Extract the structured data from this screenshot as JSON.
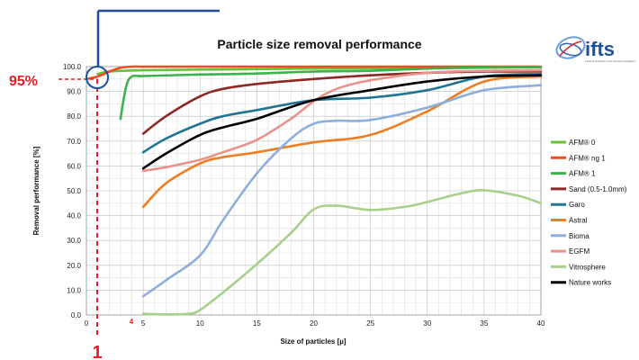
{
  "logo": {
    "text": "ifts",
    "subtitle": "Institut de la Filtration et des Techniques Séparatives"
  },
  "chart_data": {
    "type": "line",
    "title": "Particle size removal performance",
    "xlabel": "Size of particles [µ]",
    "ylabel": "Removal performance [%]",
    "xlim": [
      0,
      40
    ],
    "ylim": [
      0,
      100
    ],
    "x_ticks": [
      0,
      5,
      10,
      15,
      20,
      25,
      30,
      35,
      40
    ],
    "y_ticks": [
      0,
      10,
      20,
      30,
      40,
      50,
      60,
      70,
      80,
      90,
      100
    ],
    "y_tick_labels": [
      "0.0",
      "10.0",
      "20.0",
      "30.0",
      "40.0",
      "50.0",
      "60.0",
      "70.0",
      "80.0",
      "90.0",
      "100.0"
    ],
    "grid": true,
    "legend_position": "right",
    "series": [
      {
        "name": "AFM® 0",
        "color": "#6cbf3a",
        "x": [
          1,
          2,
          5,
          10,
          15,
          20,
          25,
          30,
          35,
          40
        ],
        "y": [
          97,
          98,
          98.5,
          98.8,
          99,
          99.2,
          99.3,
          99.5,
          99.6,
          99.7
        ]
      },
      {
        "name": "AFM® ng 1",
        "color": "#f04b23",
        "x": [
          0,
          1,
          2,
          3,
          4,
          5,
          10,
          15,
          20,
          25,
          30,
          35,
          40
        ],
        "y": [
          95,
          96,
          98,
          99.5,
          100,
          100,
          100,
          100,
          100,
          100,
          100,
          100,
          100
        ]
      },
      {
        "name": "AFM® 1",
        "color": "#3bb34a",
        "x": [
          3,
          3.5,
          4,
          5,
          10,
          15,
          20,
          25,
          30,
          35,
          40
        ],
        "y": [
          79,
          92,
          96,
          96.2,
          96.8,
          97.2,
          98,
          98.3,
          99.2,
          99.6,
          99.8
        ]
      },
      {
        "name": "Sand (0.5-1.0mm)",
        "color": "#8b2a25",
        "x": [
          5,
          7,
          10,
          12,
          15,
          20,
          25,
          30,
          35,
          40
        ],
        "y": [
          73,
          80,
          88,
          91,
          93,
          95,
          96.5,
          97.5,
          98,
          98
        ]
      },
      {
        "name": "Garo",
        "color": "#1f7592",
        "x": [
          5,
          7,
          10,
          12,
          15,
          20,
          25,
          30,
          35,
          40
        ],
        "y": [
          65.5,
          71,
          77,
          80,
          82.5,
          86.5,
          87.5,
          90.5,
          96,
          97
        ]
      },
      {
        "name": "Astral",
        "color": "#ef7d22",
        "x": [
          5,
          7,
          10,
          12,
          15,
          20,
          25,
          30,
          35,
          40
        ],
        "y": [
          43.5,
          53,
          61,
          63.5,
          65.5,
          69.5,
          72.5,
          82,
          94,
          96
        ]
      },
      {
        "name": "Bioma",
        "color": "#8eaedb",
        "x": [
          5,
          7,
          10,
          12,
          15,
          18,
          20,
          22,
          25,
          30,
          35,
          40
        ],
        "y": [
          7.5,
          14,
          24,
          38,
          57,
          71,
          77,
          78.2,
          78.5,
          83.5,
          90.5,
          92.5
        ]
      },
      {
        "name": "EGFM",
        "color": "#e8928c",
        "x": [
          5,
          7,
          10,
          12,
          15,
          18,
          20,
          22,
          25,
          30,
          35,
          40
        ],
        "y": [
          58,
          59.5,
          62.5,
          65.5,
          70.5,
          79,
          86,
          91,
          94.5,
          97.5,
          98.3,
          98.5
        ]
      },
      {
        "name": "Vitrosphere",
        "color": "#a8cf8c",
        "x": [
          5,
          7,
          9,
          10,
          12,
          15,
          18,
          20,
          22,
          25,
          28,
          30,
          33,
          35,
          38,
          40
        ],
        "y": [
          0.5,
          0.2,
          0.5,
          2,
          9,
          20.5,
          33,
          42.5,
          44,
          42.3,
          43.5,
          45.5,
          49,
          50.2,
          48,
          45
        ]
      },
      {
        "name": "Nature works",
        "color": "#000000",
        "x": [
          5,
          7,
          10,
          12,
          15,
          20,
          25,
          30,
          35,
          40
        ],
        "y": [
          59,
          65,
          72.5,
          75.5,
          79,
          86.5,
          90.5,
          94,
          96,
          96.5
        ]
      }
    ],
    "annotations": {
      "percent_label": "95%",
      "marker_x_label": "1",
      "marker_tick_label": "4"
    }
  }
}
